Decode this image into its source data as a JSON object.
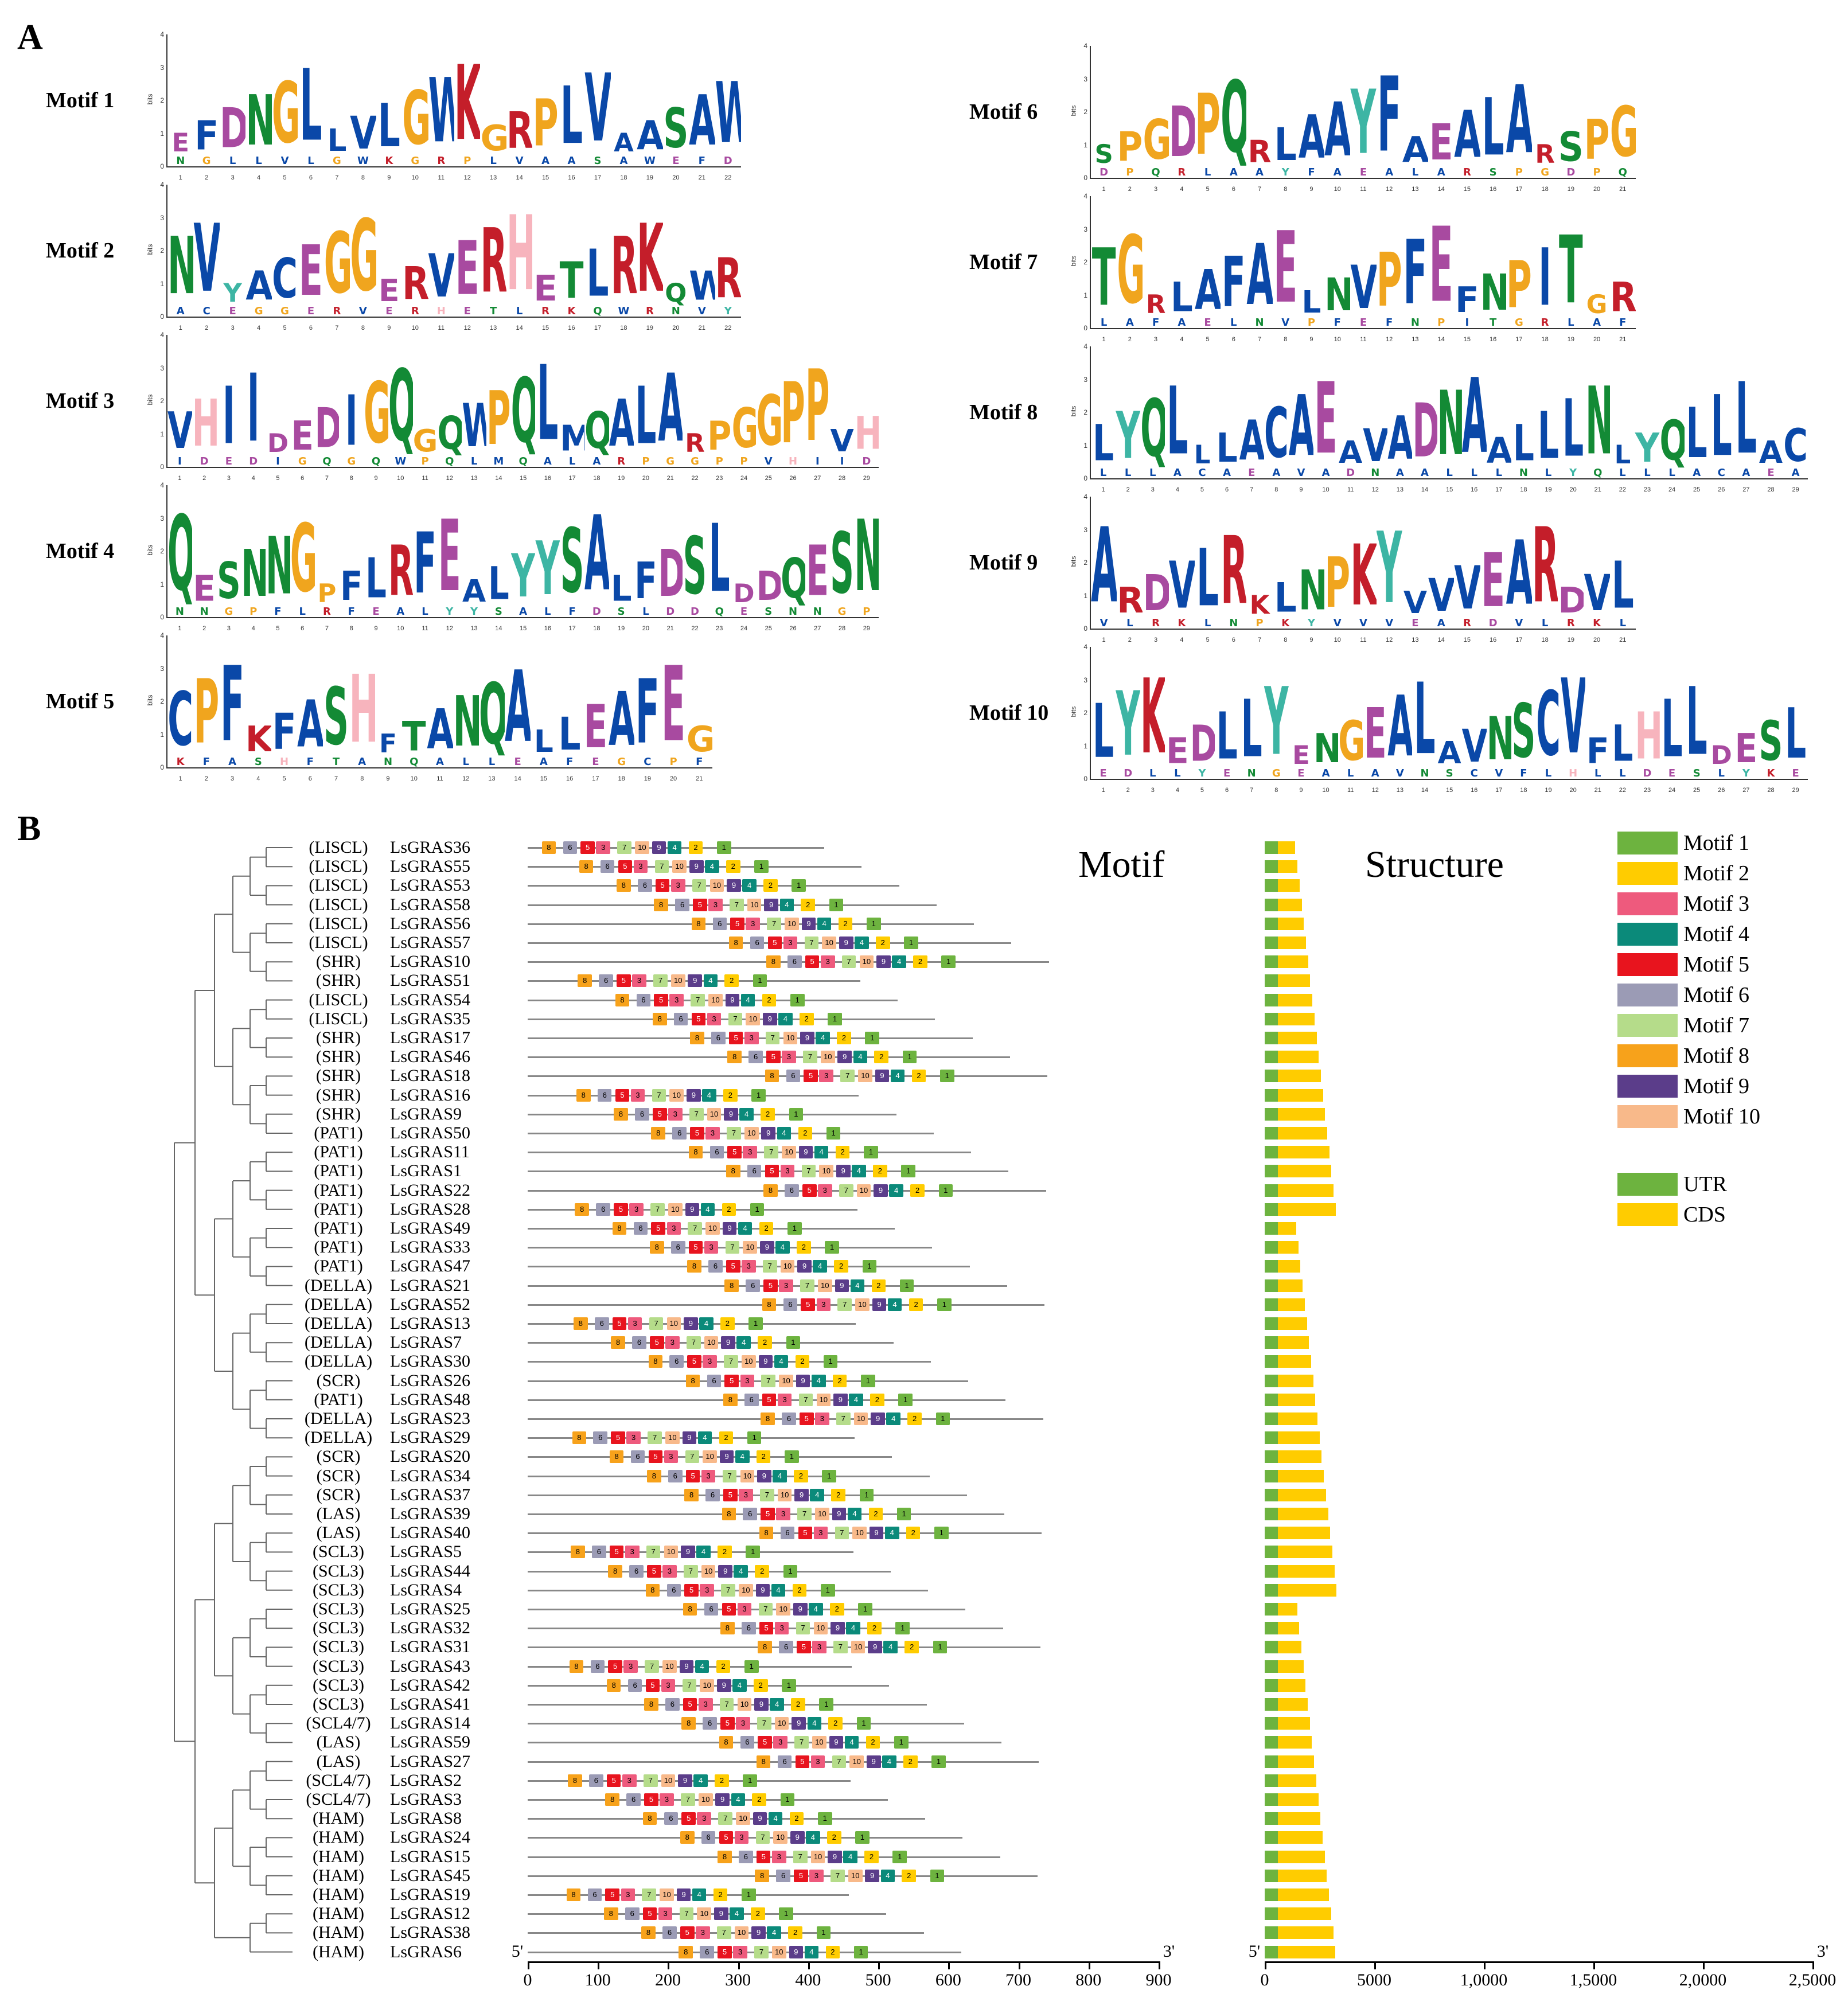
{
  "panel_a_label": "A",
  "panel_b_label": "B",
  "motif_logos": {
    "left": [
      {
        "name": "Motif 1",
        "letters": "EFDNGLLVLGWKGRPLVAASAW",
        "positions": 22
      },
      {
        "name": "Motif 2",
        "letters": "NVYACEGGERVERHETLRKQWR",
        "positions": 22
      },
      {
        "name": "Motif 3",
        "letters": "VHIIDEDIGQGQWPQLMQALARPGGPP",
        "positions": 29
      },
      {
        "name": "Motif 4",
        "letters": "QESNNGPFLRFEALYYSALFDSLDD",
        "positions": 29
      },
      {
        "name": "Motif 5",
        "letters": "CPFKFASHFTANQALLEAFEG",
        "positions": 21
      }
    ],
    "right": [
      {
        "name": "Motif 6",
        "letters": "SPGDPQRLAAYFAEALAR",
        "positions": 21
      },
      {
        "name": "Motif 7",
        "letters": "TGRLAFAELNVPFEFNPI",
        "positions": 21
      },
      {
        "name": "Motif 8",
        "letters": "LYQLLLACAEAVADNAALLLN",
        "positions": 29
      },
      {
        "name": "Motif 9",
        "letters": "ARDVLRKLNPKYVVVE",
        "positions": 21
      },
      {
        "name": "Motif 10",
        "letters": "LYKEDLLYENGEALAVNSCVFLHLLDES",
        "positions": 29
      }
    ],
    "y_ticks": [
      "4",
      "3",
      "2",
      "1",
      "0"
    ],
    "y_label": "bits"
  },
  "panel_b": {
    "motif_heading": "Motif",
    "structure_heading": "Structure",
    "genes": [
      {
        "sub": "(LISCL)",
        "name": "LsGRAS36"
      },
      {
        "sub": "(LISCL)",
        "name": "LsGRAS55"
      },
      {
        "sub": "(LISCL)",
        "name": "LsGRAS53"
      },
      {
        "sub": "(LISCL)",
        "name": "LsGRAS58"
      },
      {
        "sub": "(LISCL)",
        "name": "LsGRAS56"
      },
      {
        "sub": "(LISCL)",
        "name": "LsGRAS57"
      },
      {
        "sub": "(SHR)",
        "name": "LsGRAS10"
      },
      {
        "sub": "(SHR)",
        "name": "LsGRAS51"
      },
      {
        "sub": "(LISCL)",
        "name": "LsGRAS54"
      },
      {
        "sub": "(LISCL)",
        "name": "LsGRAS35"
      },
      {
        "sub": "(SHR)",
        "name": "LsGRAS17"
      },
      {
        "sub": "(SHR)",
        "name": "LsGRAS46"
      },
      {
        "sub": "(SHR)",
        "name": "LsGRAS18"
      },
      {
        "sub": "(SHR)",
        "name": "LsGRAS16"
      },
      {
        "sub": "(SHR)",
        "name": "LsGRAS9"
      },
      {
        "sub": "(PAT1)",
        "name": "LsGRAS50"
      },
      {
        "sub": "(PAT1)",
        "name": "LsGRAS11"
      },
      {
        "sub": "(PAT1)",
        "name": "LsGRAS1"
      },
      {
        "sub": "(PAT1)",
        "name": "LsGRAS22"
      },
      {
        "sub": "(PAT1)",
        "name": "LsGRAS28"
      },
      {
        "sub": "(PAT1)",
        "name": "LsGRAS49"
      },
      {
        "sub": "(PAT1)",
        "name": "LsGRAS33"
      },
      {
        "sub": "(PAT1)",
        "name": "LsGRAS47"
      },
      {
        "sub": "(DELLA)",
        "name": "LsGRAS21"
      },
      {
        "sub": "(DELLA)",
        "name": "LsGRAS52"
      },
      {
        "sub": "(DELLA)",
        "name": "LsGRAS13"
      },
      {
        "sub": "(DELLA)",
        "name": "LsGRAS7"
      },
      {
        "sub": "(DELLA)",
        "name": "LsGRAS30"
      },
      {
        "sub": "(SCR)",
        "name": "LsGRAS26"
      },
      {
        "sub": "(PAT1)",
        "name": "LsGRAS48"
      },
      {
        "sub": "(DELLA)",
        "name": "LsGRAS23"
      },
      {
        "sub": "(DELLA)",
        "name": "LsGRAS29"
      },
      {
        "sub": "(SCR)",
        "name": "LsGRAS20"
      },
      {
        "sub": "(SCR)",
        "name": "LsGRAS34"
      },
      {
        "sub": "(SCR)",
        "name": "LsGRAS37"
      },
      {
        "sub": "(LAS)",
        "name": "LsGRAS39"
      },
      {
        "sub": "(LAS)",
        "name": "LsGRAS40"
      },
      {
        "sub": "(SCL3)",
        "name": "LsGRAS5"
      },
      {
        "sub": "(SCL3)",
        "name": "LsGRAS44"
      },
      {
        "sub": "(SCL3)",
        "name": "LsGRAS4"
      },
      {
        "sub": "(SCL3)",
        "name": "LsGRAS25"
      },
      {
        "sub": "(SCL3)",
        "name": "LsGRAS32"
      },
      {
        "sub": "(SCL3)",
        "name": "LsGRAS31"
      },
      {
        "sub": "(SCL3)",
        "name": "LsGRAS43"
      },
      {
        "sub": "(SCL3)",
        "name": "LsGRAS42"
      },
      {
        "sub": "(SCL3)",
        "name": "LsGRAS41"
      },
      {
        "sub": "(SCL4/7)",
        "name": "LsGRAS14"
      },
      {
        "sub": "(LAS)",
        "name": "LsGRAS59"
      },
      {
        "sub": "(LAS)",
        "name": "LsGRAS27"
      },
      {
        "sub": "(SCL4/7)",
        "name": "LsGRAS2"
      },
      {
        "sub": "(SCL4/7)",
        "name": "LsGRAS3"
      },
      {
        "sub": "(HAM)",
        "name": "LsGRAS8"
      },
      {
        "sub": "(HAM)",
        "name": "LsGRAS24"
      },
      {
        "sub": "(HAM)",
        "name": "LsGRAS15"
      },
      {
        "sub": "(HAM)",
        "name": "LsGRAS45"
      },
      {
        "sub": "(HAM)",
        "name": "LsGRAS19"
      },
      {
        "sub": "(HAM)",
        "name": "LsGRAS12"
      },
      {
        "sub": "(HAM)",
        "name": "LsGRAS38"
      },
      {
        "sub": "(HAM)",
        "name": "LsGRAS6"
      }
    ],
    "motif_axis": {
      "start_label": "5'",
      "end_label": "3'",
      "ticks": [
        "0",
        "100",
        "200",
        "300",
        "400",
        "500",
        "600",
        "700",
        "800",
        "900"
      ],
      "max": 900
    },
    "structure_axis": {
      "start_label": "5'",
      "end_label": "3'",
      "ticks": [
        "0",
        "5000",
        "1,0000",
        "1,5000",
        "2,0000",
        "2,5000"
      ],
      "max": 25000
    },
    "legend": [
      {
        "label": "Motif 1",
        "color": "#6db33f"
      },
      {
        "label": "Motif 2",
        "color": "#ffcc00"
      },
      {
        "label": "Motif 3",
        "color": "#ee5a7d"
      },
      {
        "label": "Motif 4",
        "color": "#0b8a7a"
      },
      {
        "label": "Motif 5",
        "color": "#e8141e"
      },
      {
        "label": "Motif 6",
        "color": "#9b9bb5"
      },
      {
        "label": "Motif 7",
        "color": "#b5dc8a"
      },
      {
        "label": "Motif 8",
        "color": "#f7a21b"
      },
      {
        "label": "Motif 9",
        "color": "#5b3d8a"
      },
      {
        "label": "Motif 10",
        "color": "#f8b98a"
      }
    ],
    "legend_struct": [
      {
        "label": "UTR",
        "color": "#6db33f"
      },
      {
        "label": "CDS",
        "color": "#ffcc00"
      }
    ]
  }
}
